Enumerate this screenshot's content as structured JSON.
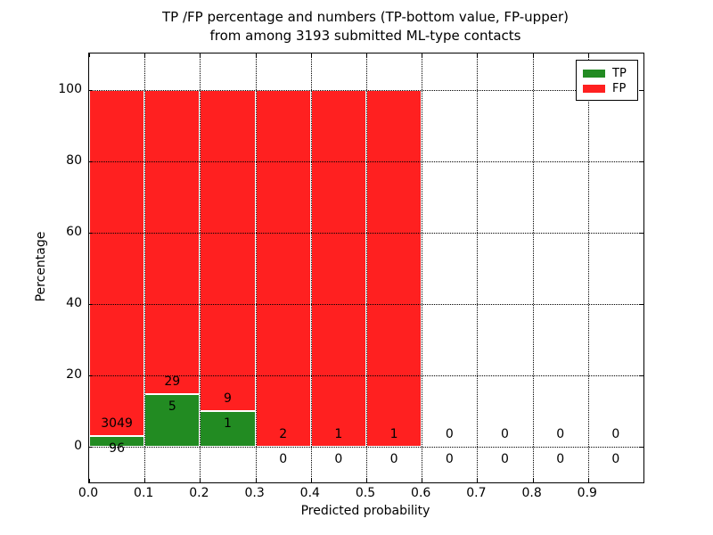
{
  "figure": {
    "background": "#ffffff"
  },
  "chart_data": {
    "type": "bar",
    "stacked": true,
    "title_line1": "TP /FP percentage and numbers (TP-bottom value, FP-upper)",
    "title_line2": "from among 3193 submitted ML-type contacts",
    "xlabel": "Predicted probability",
    "ylabel": "Percentage",
    "total_contacts": 3193,
    "xlim": [
      0.0,
      1.0
    ],
    "ylim": [
      -10,
      110.25
    ],
    "xticks": [
      {
        "value": 0.0,
        "label": "0.0"
      },
      {
        "value": 0.1,
        "label": "0.1"
      },
      {
        "value": 0.2,
        "label": "0.2"
      },
      {
        "value": 0.3,
        "label": "0.3"
      },
      {
        "value": 0.4,
        "label": "0.4"
      },
      {
        "value": 0.5,
        "label": "0.5"
      },
      {
        "value": 0.6,
        "label": "0.6"
      },
      {
        "value": 0.7,
        "label": "0.7"
      },
      {
        "value": 0.8,
        "label": "0.8"
      },
      {
        "value": 0.9,
        "label": "0.9"
      }
    ],
    "yticks": [
      {
        "value": 0,
        "label": "0"
      },
      {
        "value": 20,
        "label": "20"
      },
      {
        "value": 40,
        "label": "40"
      },
      {
        "value": 60,
        "label": "60"
      },
      {
        "value": 80,
        "label": "80"
      },
      {
        "value": 100,
        "label": "100"
      }
    ],
    "grid": {
      "linestyle": "dotted",
      "color": "#000000",
      "drawn_above_bars": true
    },
    "colors": {
      "tp": "#228b22",
      "fp": "#ff2020",
      "bar_edge": "#ffffff",
      "text": "#000000"
    },
    "legend": {
      "position": "upper-right",
      "items": [
        {
          "label": "TP",
          "color_key": "tp"
        },
        {
          "label": "FP",
          "color_key": "fp"
        }
      ]
    },
    "bins": [
      {
        "x_start": 0.0,
        "x_end": 0.1,
        "tp_count": 96,
        "fp_count": 3049,
        "tp_pct": 3.05,
        "fp_pct": 96.95
      },
      {
        "x_start": 0.1,
        "x_end": 0.2,
        "tp_count": 5,
        "fp_count": 29,
        "tp_pct": 14.71,
        "fp_pct": 85.29
      },
      {
        "x_start": 0.2,
        "x_end": 0.3,
        "tp_count": 1,
        "fp_count": 9,
        "tp_pct": 10.0,
        "fp_pct": 90.0
      },
      {
        "x_start": 0.3,
        "x_end": 0.4,
        "tp_count": 0,
        "fp_count": 2,
        "tp_pct": 0,
        "fp_pct": 100
      },
      {
        "x_start": 0.4,
        "x_end": 0.5,
        "tp_count": 0,
        "fp_count": 1,
        "tp_pct": 0,
        "fp_pct": 100
      },
      {
        "x_start": 0.5,
        "x_end": 0.6,
        "tp_count": 0,
        "fp_count": 1,
        "tp_pct": 0,
        "fp_pct": 100
      },
      {
        "x_start": 0.6,
        "x_end": 0.7,
        "tp_count": 0,
        "fp_count": 0,
        "tp_pct": 0,
        "fp_pct": 0
      },
      {
        "x_start": 0.7,
        "x_end": 0.8,
        "tp_count": 0,
        "fp_count": 0,
        "tp_pct": 0,
        "fp_pct": 0
      },
      {
        "x_start": 0.8,
        "x_end": 0.9,
        "tp_count": 0,
        "fp_count": 0,
        "tp_pct": 0,
        "fp_pct": 0
      },
      {
        "x_start": 0.9,
        "x_end": 1.0,
        "tp_count": 0,
        "fp_count": 0,
        "tp_pct": 0,
        "fp_pct": 0
      }
    ]
  }
}
